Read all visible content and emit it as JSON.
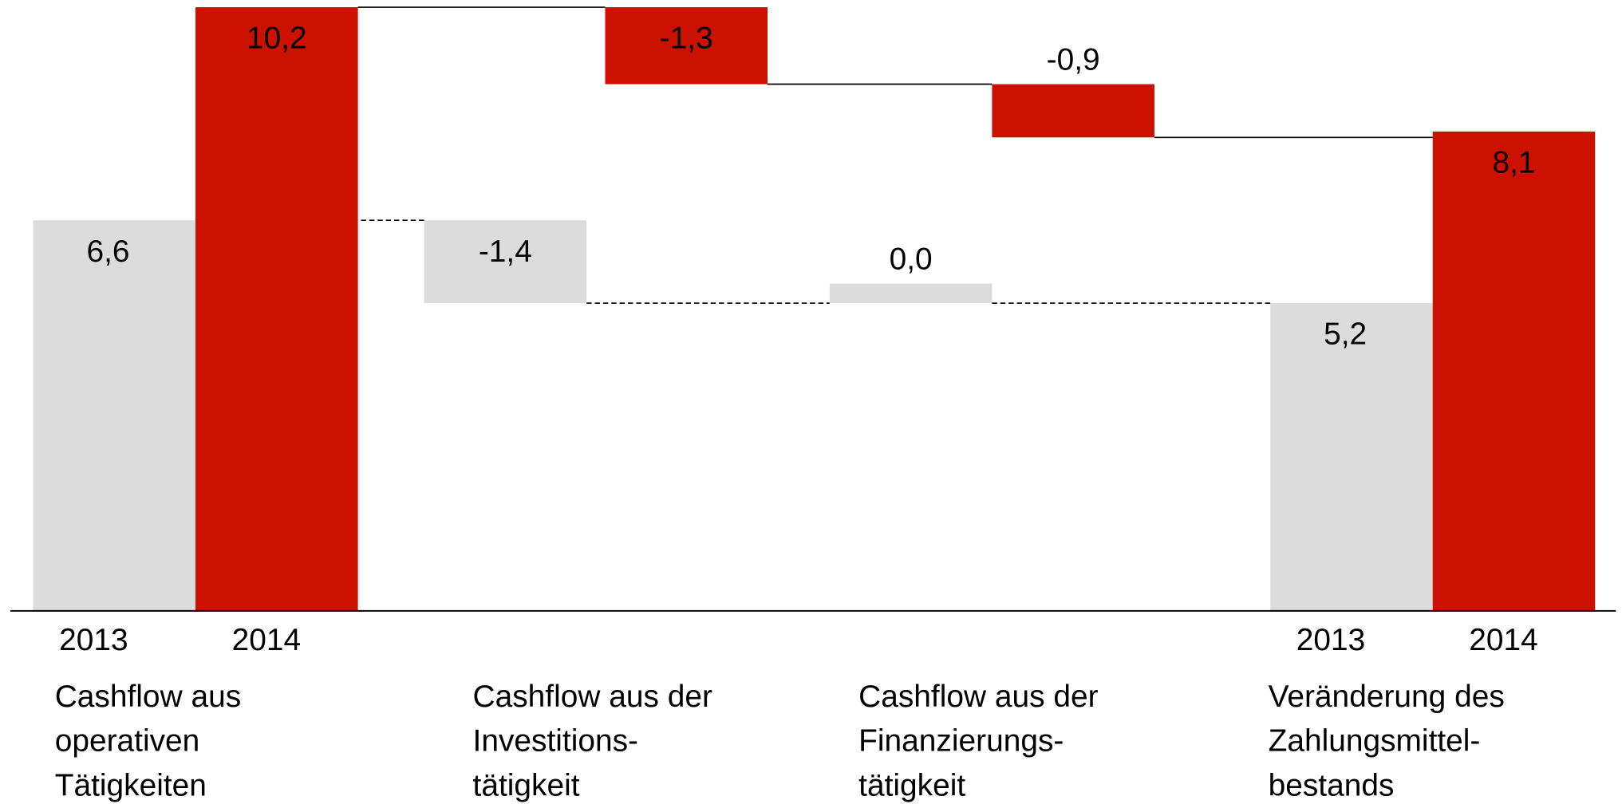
{
  "chart_data": {
    "type": "waterfall",
    "categories": [
      [
        "Cashflow aus",
        "operativen",
        "Tätigkeiten"
      ],
      [
        "Cashflow aus der",
        "Investitions-",
        "tätigkeit"
      ],
      [
        "Cashflow aus der",
        "Finanzierungs-",
        "tätigkeit"
      ],
      [
        "Veränderung des",
        "Zahlungsmittel-",
        "bestands"
      ]
    ],
    "series": [
      {
        "name": "2013",
        "color": "#dcdcdc",
        "values": [
          6.6,
          -1.4,
          0.0,
          5.2
        ],
        "value_labels": [
          "6,6",
          "-1,4",
          "0,0",
          "5,2"
        ]
      },
      {
        "name": "2014",
        "color": "#cc1100",
        "values": [
          10.2,
          -1.3,
          -0.9,
          8.1
        ],
        "value_labels": [
          "10,2",
          "-1,3",
          "-0,9",
          "8,1"
        ]
      }
    ]
  }
}
